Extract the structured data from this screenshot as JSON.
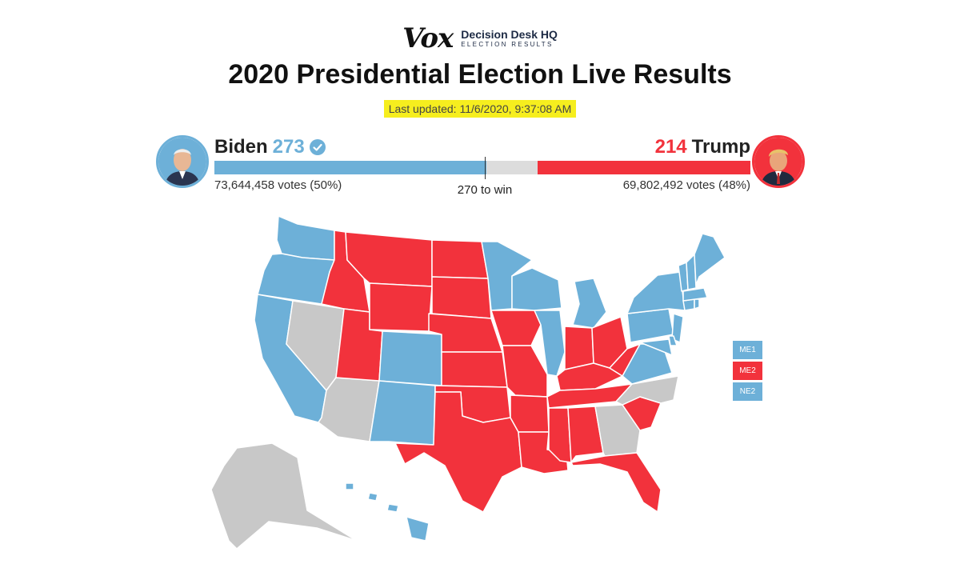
{
  "brand": {
    "logo": "Vox",
    "partner_top": "Decision Desk HQ",
    "partner_bottom": "ELECTION RESULTS"
  },
  "header": {
    "title": "2020 Presidential Election Live Results",
    "updated": "Last updated: 11/6/2020, 9:37:08 AM"
  },
  "colors": {
    "dem": "#6db0d8",
    "rep": "#f2323c",
    "uncalled": "#c8c8c8",
    "highlight": "#f6ee1e"
  },
  "race": {
    "threshold_label": "270 to win",
    "threshold": 270,
    "total_ev": 538,
    "biden": {
      "name": "Biden",
      "ev": "273",
      "ev_value": 273,
      "votes": "73,644,458 votes (50%)",
      "called_icon": "check-circle-icon"
    },
    "trump": {
      "name": "Trump",
      "ev": "214",
      "ev_value": 214,
      "votes": "69,802,492 votes (48%)"
    }
  },
  "map": {
    "dem_states": [
      "WA",
      "OR",
      "CA",
      "CO",
      "NM",
      "MN",
      "WI",
      "MI",
      "IL",
      "VA",
      "NY",
      "PA",
      "NJ",
      "DE",
      "MD",
      "CT",
      "RI",
      "MA",
      "VT",
      "NH",
      "ME",
      "HI"
    ],
    "rep_states": [
      "ID",
      "MT",
      "WY",
      "UT",
      "ND",
      "SD",
      "NE",
      "KS",
      "OK",
      "TX",
      "IA",
      "MO",
      "AR",
      "LA",
      "MS",
      "AL",
      "TN",
      "KY",
      "IN",
      "OH",
      "WV",
      "SC",
      "FL"
    ],
    "uncalled_states": [
      "NV",
      "AZ",
      "GA",
      "NC",
      "AK"
    ]
  },
  "districts": [
    {
      "label": "ME1",
      "party": "blue"
    },
    {
      "label": "ME2",
      "party": "red"
    },
    {
      "label": "NE2",
      "party": "blue"
    }
  ]
}
